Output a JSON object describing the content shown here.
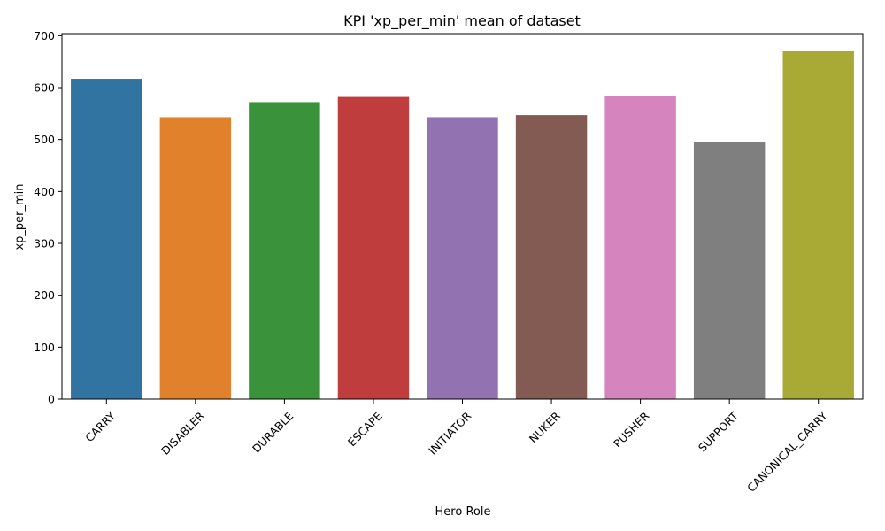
{
  "chart_data": {
    "type": "bar",
    "title": "KPI 'xp_per_min' mean of dataset",
    "xlabel": "Hero Role",
    "ylabel": "xp_per_min",
    "categories": [
      "CARRY",
      "DISABLER",
      "DURABLE",
      "ESCAPE",
      "INITIATOR",
      "NUKER",
      "PUSHER",
      "SUPPORT",
      "CANONICAL_CARRY"
    ],
    "values": [
      617,
      543,
      572,
      582,
      543,
      547,
      584,
      495,
      670
    ],
    "colors": [
      "#3274a1",
      "#e1812c",
      "#3a923a",
      "#c03d3e",
      "#9372b2",
      "#845b53",
      "#d684bd",
      "#7f7f7f",
      "#a9aa35"
    ],
    "yticks": [
      0,
      100,
      200,
      300,
      400,
      500,
      600,
      700
    ],
    "ylim": [
      0,
      704
    ],
    "grid": false,
    "legend": "none"
  }
}
